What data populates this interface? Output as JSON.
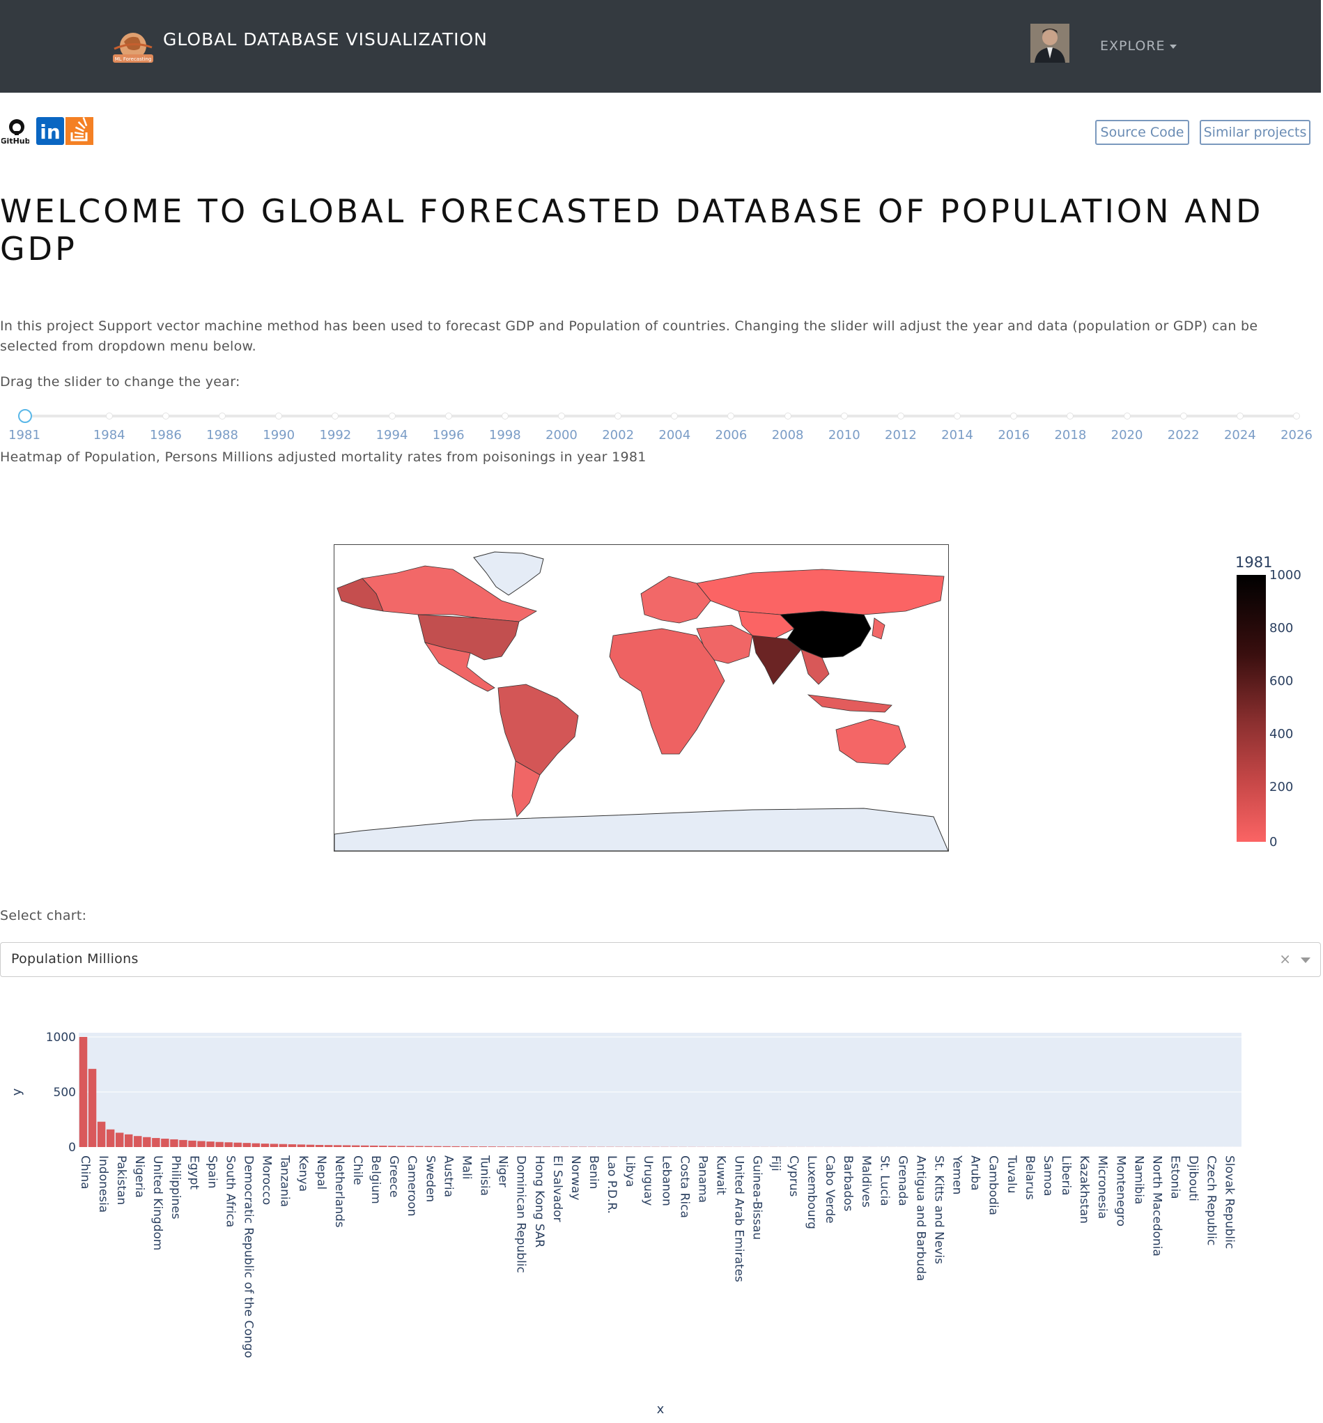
{
  "navbar": {
    "brand_title": "GLOBAL DATABASE VISUALIZATION",
    "logo_text": "ML Forecasting",
    "explore_label": "EXPLORE"
  },
  "social": {
    "github_label": "GitHub",
    "linkedin_label": "in"
  },
  "buttons": {
    "source_code": "Source Code",
    "similar_projects": "Similar projects"
  },
  "page_title": "WELCOME TO GLOBAL FORECASTED DATABASE OF POPULATION AND GDP",
  "intro": "In this project Support vector machine method has been used to forecast GDP and Population of countries. Changing the slider will adjust the year and data (population or GDP) can be selected from dropdown menu below.",
  "slider": {
    "label": "Drag the slider to change the year:",
    "selected": "1981",
    "marks": [
      "1981",
      "1984",
      "1986",
      "1988",
      "1990",
      "1992",
      "1994",
      "1996",
      "1998",
      "2000",
      "2002",
      "2004",
      "2006",
      "2008",
      "2010",
      "2012",
      "2014",
      "2016",
      "2018",
      "2020",
      "2022",
      "2024",
      "2026"
    ]
  },
  "heatmap": {
    "caption": "Heatmap of Population, Persons Millions adjusted mortality rates from poisonings in year 1981",
    "colorbar_title": "1981",
    "colorbar_ticks": [
      "1000",
      "800",
      "600",
      "400",
      "200",
      "0"
    ],
    "colors": {
      "high": "#000000",
      "mid": "#8a2f2f",
      "low": "#fb6464",
      "no_data": "#e5ecf6"
    }
  },
  "select": {
    "label": "Select chart:",
    "value": "Population Millions"
  },
  "chart_data": {
    "type": "bar",
    "xlabel": "x",
    "ylabel": "y",
    "ylim": [
      0,
      1000
    ],
    "yticks": [
      "0",
      "500",
      "1000"
    ],
    "bar_color": "#d9595b",
    "plot_background": "#e5ecf6",
    "labeled_categories": [
      "China",
      "Indonesia",
      "Pakistan",
      "Nigeria",
      "United Kingdom",
      "Philippines",
      "Egypt",
      "Spain",
      "South Africa",
      "Democratic Republic of the Congo",
      "Morocco",
      "Tanzania",
      "Kenya",
      "Nepal",
      "Netherlands",
      "Chile",
      "Belgium",
      "Greece",
      "Cameroon",
      "Sweden",
      "Austria",
      "Mali",
      "Tunisia",
      "Niger",
      "Dominican Republic",
      "Hong Kong SAR",
      "El Salvador",
      "Norway",
      "Benin",
      "Lao P.D.R.",
      "Libya",
      "Uruguay",
      "Lebanon",
      "Costa Rica",
      "Panama",
      "Kuwait",
      "United Arab Emirates",
      "Guinea-Bissau",
      "Fiji",
      "Cyprus",
      "Luxembourg",
      "Cabo Verde",
      "Barbados",
      "Maldives",
      "St. Lucia",
      "Grenada",
      "Antigua and Barbuda",
      "St. Kitts and Nevis",
      "Yemen",
      "Aruba",
      "Cambodia",
      "Tuvalu",
      "Belarus",
      "Samoa",
      "Liberia",
      "Kazakhstan",
      "Micronesia",
      "Montenegro",
      "Namibia",
      "North Macedonia",
      "Estonia",
      "Djibouti",
      "Czech Republic",
      "Slovak Republic"
    ],
    "values": [
      1000,
      710,
      230,
      160,
      130,
      115,
      100,
      90,
      82,
      76,
      70,
      64,
      58,
      54,
      50,
      46,
      43,
      40,
      37,
      34,
      31,
      29,
      27,
      25,
      23,
      21,
      19,
      18,
      17,
      16,
      15,
      14,
      13,
      12,
      11,
      10,
      9.5,
      9,
      8.5,
      8,
      7.5,
      7,
      6.5,
      6,
      5.6,
      5.2,
      4.8,
      4.5,
      4.2,
      3.9,
      3.6,
      3.4,
      3.2,
      3,
      2.8,
      2.6,
      2.4,
      2.2,
      2.1,
      2,
      1.9,
      1.8,
      1.7,
      1.6,
      1.5,
      1.4,
      1.3,
      1.2,
      1.1,
      1.0,
      0.95,
      0.9,
      0.85,
      0.8,
      0.75,
      0.7,
      0.65,
      0.6,
      0.55,
      0.5,
      0.48,
      0.46,
      0.44,
      0.42,
      0.4,
      0.38,
      0.36,
      0.34,
      0.32,
      0.3,
      0.29,
      0.28,
      0.27,
      0.26,
      0.25,
      0.24,
      0.23,
      0.22,
      0.21,
      0.2,
      0.19,
      0.18,
      0.17,
      0.16,
      0.15,
      0.14,
      0.13,
      0.12,
      0.11,
      0.1,
      0.1,
      0.1,
      0.1,
      0.1,
      0.1,
      0.1,
      0.1,
      0.1,
      0.1,
      0.1,
      0.1,
      0.1,
      0.1,
      0.1,
      0.1,
      0.1,
      0.1,
      0.1
    ]
  }
}
